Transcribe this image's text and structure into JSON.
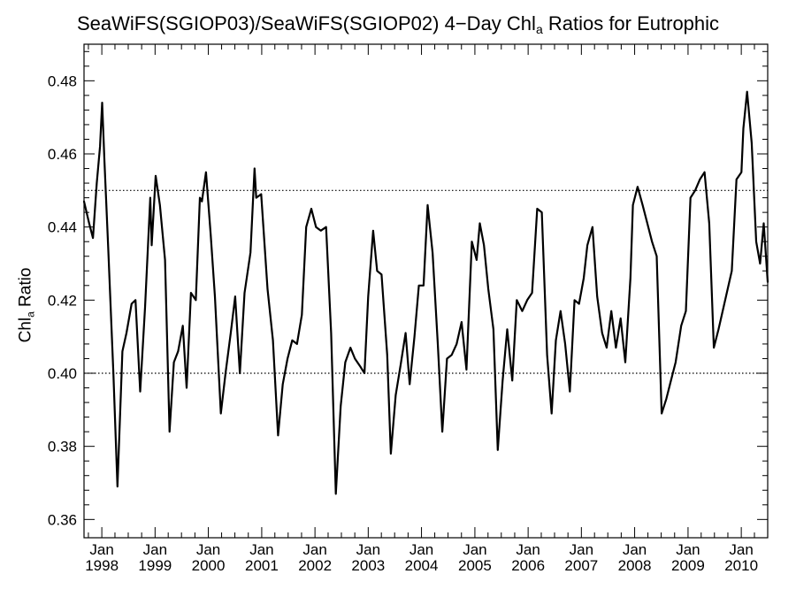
{
  "title": {
    "prefix": "SeaWiFS(SGIOP03)/SeaWiFS(SGIOP02) 4−Day Chl",
    "subscript": "a",
    "suffix": " Ratios for Eutrophic"
  },
  "ylabel": {
    "prefix": "Chl",
    "subscript": "a",
    "suffix": " Ratio"
  },
  "chart_data": {
    "type": "line",
    "title": "SeaWiFS(SGIOP03)/SeaWiFS(SGIOP02) 4−Day Chla Ratios for Eutrophic",
    "xlabel": "",
    "ylabel": "Chla Ratio",
    "xlim": [
      "1997-09-01",
      "2010-07-01"
    ],
    "ylim": [
      0.355,
      0.49
    ],
    "yticks": [
      "0.36",
      "0.38",
      "0.40",
      "0.42",
      "0.44",
      "0.46",
      "0.48"
    ],
    "xticks": [
      {
        "date": "1998-01-01",
        "month": "Jan",
        "year": "1998"
      },
      {
        "date": "1999-01-01",
        "month": "Jan",
        "year": "1999"
      },
      {
        "date": "2000-01-01",
        "month": "Jan",
        "year": "2000"
      },
      {
        "date": "2001-01-01",
        "month": "Jan",
        "year": "2001"
      },
      {
        "date": "2002-01-01",
        "month": "Jan",
        "year": "2002"
      },
      {
        "date": "2003-01-01",
        "month": "Jan",
        "year": "2003"
      },
      {
        "date": "2004-01-01",
        "month": "Jan",
        "year": "2004"
      },
      {
        "date": "2005-01-01",
        "month": "Jan",
        "year": "2005"
      },
      {
        "date": "2006-01-01",
        "month": "Jan",
        "year": "2006"
      },
      {
        "date": "2007-01-01",
        "month": "Jan",
        "year": "2007"
      },
      {
        "date": "2008-01-01",
        "month": "Jan",
        "year": "2008"
      },
      {
        "date": "2009-01-01",
        "month": "Jan",
        "year": "2009"
      },
      {
        "date": "2010-01-01",
        "month": "Jan",
        "year": "2010"
      }
    ],
    "reference_lines": [
      0.4,
      0.45
    ],
    "grid": false,
    "series": [
      {
        "points": [
          [
            "1997-09-01",
            0.447
          ],
          [
            "1997-10-06",
            0.441
          ],
          [
            "1997-11-01",
            0.437
          ],
          [
            "1997-11-27",
            0.452
          ],
          [
            "1997-12-20",
            0.462
          ],
          [
            "1998-01-03",
            0.474
          ],
          [
            "1998-01-19",
            0.458
          ],
          [
            "1998-02-14",
            0.434
          ],
          [
            "1998-03-21",
            0.4
          ],
          [
            "1998-04-18",
            0.369
          ],
          [
            "1998-05-22",
            0.406
          ],
          [
            "1998-06-19",
            0.411
          ],
          [
            "1998-07-24",
            0.419
          ],
          [
            "1998-08-20",
            0.42
          ],
          [
            "1998-09-21",
            0.395
          ],
          [
            "1998-10-24",
            0.418
          ],
          [
            "1998-11-29",
            0.448
          ],
          [
            "1998-12-09",
            0.435
          ],
          [
            "1999-01-05",
            0.454
          ],
          [
            "1999-02-03",
            0.446
          ],
          [
            "1999-03-10",
            0.431
          ],
          [
            "1999-04-10",
            0.384
          ],
          [
            "1999-05-10",
            0.403
          ],
          [
            "1999-06-08",
            0.406
          ],
          [
            "1999-07-10",
            0.413
          ],
          [
            "1999-08-05",
            0.396
          ],
          [
            "1999-09-04",
            0.422
          ],
          [
            "1999-10-07",
            0.42
          ],
          [
            "1999-11-04",
            0.448
          ],
          [
            "1999-11-18",
            0.447
          ],
          [
            "1999-12-16",
            0.455
          ],
          [
            "2000-01-17",
            0.438
          ],
          [
            "2000-02-15",
            0.421
          ],
          [
            "2000-03-27",
            0.389
          ],
          [
            "2000-04-28",
            0.4
          ],
          [
            "2000-06-03",
            0.411
          ],
          [
            "2000-07-03",
            0.421
          ],
          [
            "2000-08-04",
            0.4
          ],
          [
            "2000-09-05",
            0.422
          ],
          [
            "2000-10-16",
            0.433
          ],
          [
            "2000-11-13",
            0.456
          ],
          [
            "2000-11-24",
            0.448
          ],
          [
            "2000-12-28",
            0.449
          ],
          [
            "2001-02-10",
            0.423
          ],
          [
            "2001-03-19",
            0.409
          ],
          [
            "2001-04-23",
            0.383
          ],
          [
            "2001-05-25",
            0.397
          ],
          [
            "2001-06-27",
            0.404
          ],
          [
            "2001-07-29",
            0.409
          ],
          [
            "2001-08-31",
            0.408
          ],
          [
            "2001-10-03",
            0.416
          ],
          [
            "2001-11-02",
            0.44
          ],
          [
            "2001-12-07",
            0.445
          ],
          [
            "2002-01-08",
            0.44
          ],
          [
            "2002-02-10",
            0.439
          ],
          [
            "2002-03-18",
            0.44
          ],
          [
            "2002-04-22",
            0.411
          ],
          [
            "2002-05-24",
            0.367
          ],
          [
            "2002-06-26",
            0.391
          ],
          [
            "2002-07-28",
            0.403
          ],
          [
            "2002-09-01",
            0.407
          ],
          [
            "2002-10-02",
            0.404
          ],
          [
            "2002-11-05",
            0.402
          ],
          [
            "2002-12-06",
            0.4
          ],
          [
            "2003-01-01",
            0.421
          ],
          [
            "2003-02-04",
            0.439
          ],
          [
            "2003-03-03",
            0.428
          ],
          [
            "2003-04-02",
            0.427
          ],
          [
            "2003-05-11",
            0.405
          ],
          [
            "2003-06-05",
            0.378
          ],
          [
            "2003-07-08",
            0.394
          ],
          [
            "2003-08-10",
            0.402
          ],
          [
            "2003-09-14",
            0.411
          ],
          [
            "2003-10-12",
            0.397
          ],
          [
            "2003-11-14",
            0.41
          ],
          [
            "2003-12-14",
            0.424
          ],
          [
            "2004-01-15",
            0.424
          ],
          [
            "2004-02-12",
            0.446
          ],
          [
            "2004-03-17",
            0.433
          ],
          [
            "2004-04-22",
            0.408
          ],
          [
            "2004-05-23",
            0.384
          ],
          [
            "2004-06-24",
            0.404
          ],
          [
            "2004-07-26",
            0.405
          ],
          [
            "2004-08-29",
            0.408
          ],
          [
            "2004-10-02",
            0.414
          ],
          [
            "2004-11-04",
            0.401
          ],
          [
            "2004-12-11",
            0.436
          ],
          [
            "2005-01-13",
            0.431
          ],
          [
            "2005-02-04",
            0.441
          ],
          [
            "2005-03-04",
            0.435
          ],
          [
            "2005-04-03",
            0.423
          ],
          [
            "2005-05-08",
            0.412
          ],
          [
            "2005-06-07",
            0.379
          ],
          [
            "2005-07-10",
            0.398
          ],
          [
            "2005-08-11",
            0.412
          ],
          [
            "2005-09-14",
            0.398
          ],
          [
            "2005-10-15",
            0.42
          ],
          [
            "2005-11-22",
            0.417
          ],
          [
            "2005-12-26",
            0.42
          ],
          [
            "2006-01-28",
            0.422
          ],
          [
            "2006-03-04",
            0.445
          ],
          [
            "2006-04-05",
            0.444
          ],
          [
            "2006-05-11",
            0.405
          ],
          [
            "2006-06-11",
            0.389
          ],
          [
            "2006-07-10",
            0.409
          ],
          [
            "2006-08-11",
            0.417
          ],
          [
            "2006-09-12",
            0.408
          ],
          [
            "2006-10-14",
            0.395
          ],
          [
            "2006-11-15",
            0.42
          ],
          [
            "2006-12-16",
            0.419
          ],
          [
            "2007-01-17",
            0.426
          ],
          [
            "2007-02-11",
            0.435
          ],
          [
            "2007-03-18",
            0.44
          ],
          [
            "2007-04-19",
            0.421
          ],
          [
            "2007-05-23",
            0.411
          ],
          [
            "2007-06-23",
            0.407
          ],
          [
            "2007-07-25",
            0.417
          ],
          [
            "2007-08-26",
            0.407
          ],
          [
            "2007-09-27",
            0.415
          ],
          [
            "2007-10-29",
            0.403
          ],
          [
            "2007-12-03",
            0.426
          ],
          [
            "2007-12-20",
            0.446
          ],
          [
            "2008-01-21",
            0.451
          ],
          [
            "2008-02-25",
            0.446
          ],
          [
            "2008-03-28",
            0.441
          ],
          [
            "2008-04-29",
            0.436
          ],
          [
            "2008-05-31",
            0.432
          ],
          [
            "2008-07-04",
            0.389
          ],
          [
            "2008-08-05",
            0.393
          ],
          [
            "2008-09-06",
            0.398
          ],
          [
            "2008-10-08",
            0.403
          ],
          [
            "2008-11-15",
            0.413
          ],
          [
            "2008-12-17",
            0.417
          ],
          [
            "2009-01-18",
            0.448
          ],
          [
            "2009-02-19",
            0.45
          ],
          [
            "2009-03-23",
            0.453
          ],
          [
            "2009-04-24",
            0.455
          ],
          [
            "2009-05-26",
            0.441
          ],
          [
            "2009-06-27",
            0.407
          ],
          [
            "2009-07-29",
            0.412
          ],
          [
            "2009-10-28",
            0.428
          ],
          [
            "2009-11-29",
            0.453
          ],
          [
            "2010-01-02",
            0.455
          ],
          [
            "2010-01-15",
            0.467
          ],
          [
            "2010-02-10",
            0.477
          ],
          [
            "2010-03-13",
            0.463
          ],
          [
            "2010-04-13",
            0.436
          ],
          [
            "2010-05-10",
            0.43
          ],
          [
            "2010-06-04",
            0.441
          ],
          [
            "2010-07-01",
            0.425
          ]
        ]
      }
    ]
  }
}
